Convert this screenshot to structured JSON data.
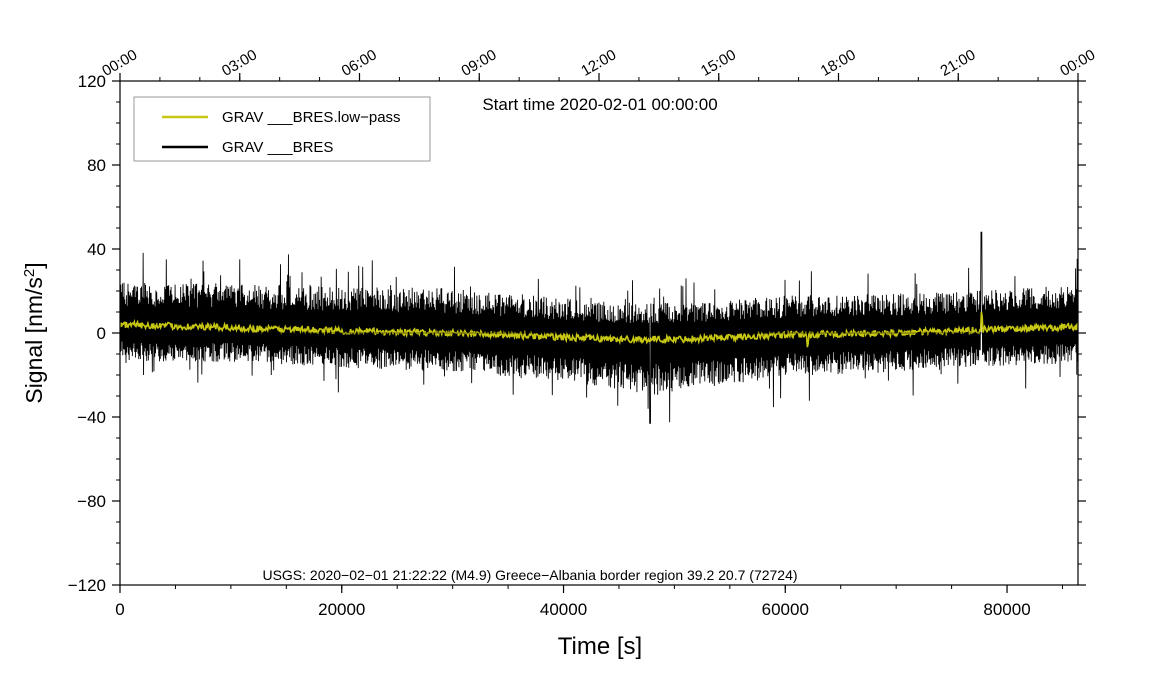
{
  "chart_data": {
    "type": "line",
    "xlabel": "Time [s]",
    "ylabel": "Signal [nm/s",
    "ylabel_sup": "2",
    "ylabel_end": "]",
    "xlim": [
      0,
      86400
    ],
    "ylim": [
      -120,
      120
    ],
    "x_ticks": [
      0,
      20000,
      40000,
      60000,
      80000
    ],
    "x_tick_labels": [
      "0",
      "20000",
      "40000",
      "60000",
      "80000"
    ],
    "y_ticks": [
      120,
      80,
      40,
      0,
      -40,
      -80,
      -120
    ],
    "y_tick_labels": [
      "120",
      "80",
      "40",
      "0",
      "−40",
      "−80",
      "−120"
    ],
    "top_axis": {
      "ticks": [
        0,
        10800,
        21600,
        32400,
        43200,
        54000,
        64800,
        75600,
        86400
      ],
      "tick_labels": [
        "00:00",
        "03:00",
        "06:00",
        "09:00",
        "12:00",
        "15:00",
        "18:00",
        "21:00",
        "00:00"
      ]
    },
    "annotations": {
      "start_time": "Start time 2020-02-01 00:00:00",
      "event": "USGS: 2020−02−01 21:22:22 (M4.9) Greece−Albania border region 39.2 20.7 (72724)"
    },
    "legend": {
      "placement": "top-left"
    },
    "series": [
      {
        "name": "GRAV ___BRES.low−pass",
        "color": "#c8c814",
        "envelope": {
          "x": [
            0,
            10000,
            20000,
            30000,
            40000,
            45000,
            50000,
            60000,
            70000,
            80000,
            86400
          ],
          "y": [
            4,
            2.5,
            1,
            0,
            -2,
            -3,
            -3,
            -1,
            0,
            2,
            3
          ]
        }
      },
      {
        "name": "GRAV ___BRES",
        "color": "#000000",
        "envelope": {
          "x": [
            0,
            10000,
            20000,
            30000,
            40000,
            44000,
            48000,
            52000,
            60000,
            70000,
            80000,
            86400
          ],
          "upper": [
            16,
            17,
            17,
            17,
            15,
            14,
            14,
            14,
            15,
            15,
            15,
            16
          ],
          "lower": [
            -14,
            -13,
            -14,
            -15,
            -17,
            -19,
            -21,
            -19,
            -16,
            -15,
            -14,
            -14
          ],
          "max_spike": 48,
          "min_spike": -43
        }
      }
    ]
  }
}
